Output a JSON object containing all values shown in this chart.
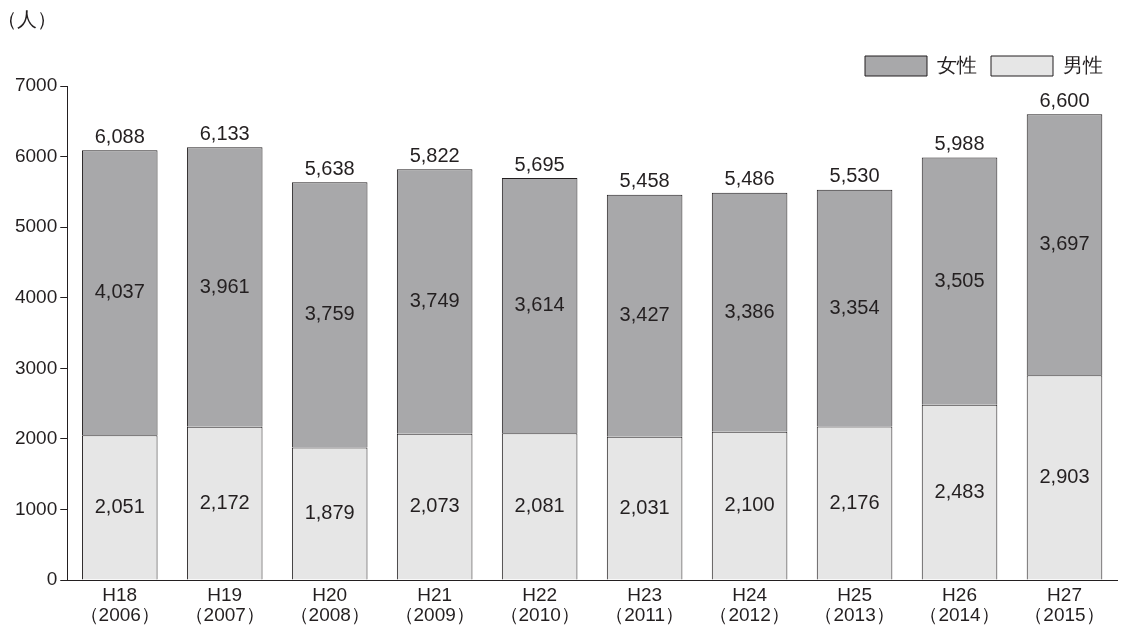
{
  "chart_data": {
    "type": "bar",
    "stacked": true,
    "ylabel": "（人）",
    "categories": [
      "H18\n（2006）",
      "H19\n（2007）",
      "H20\n（2008）",
      "H21\n（2009）",
      "H22\n（2010）",
      "H23\n（2011）",
      "H24\n（2012）",
      "H25\n（2013）",
      "H26\n（2014）",
      "H27\n（2015）"
    ],
    "series": [
      {
        "name": "男性",
        "color": "#e6e6e6",
        "values": [
          2051,
          2172,
          1879,
          2073,
          2081,
          2031,
          2100,
          2176,
          2483,
          2903
        ],
        "value_labels": [
          "2,051",
          "2,172",
          "1,879",
          "2,073",
          "2,081",
          "2,031",
          "2,100",
          "2,176",
          "2,483",
          "2,903"
        ]
      },
      {
        "name": "女性",
        "color": "#a8a8aa",
        "values": [
          4037,
          3961,
          3759,
          3749,
          3614,
          3427,
          3386,
          3354,
          3505,
          3697
        ],
        "value_labels": [
          "4,037",
          "3,961",
          "3,759",
          "3,749",
          "3,614",
          "3,427",
          "3,386",
          "3,354",
          "3,505",
          "3,697"
        ]
      }
    ],
    "totals": [
      "6,088",
      "6,133",
      "5,638",
      "5,822",
      "5,695",
      "5,458",
      "5,486",
      "5,530",
      "5,988",
      "6,600"
    ],
    "ylim": [
      0,
      7000
    ],
    "yticks": [
      0,
      1000,
      2000,
      3000,
      4000,
      5000,
      6000,
      7000
    ],
    "grid": false,
    "legend": "top right"
  }
}
